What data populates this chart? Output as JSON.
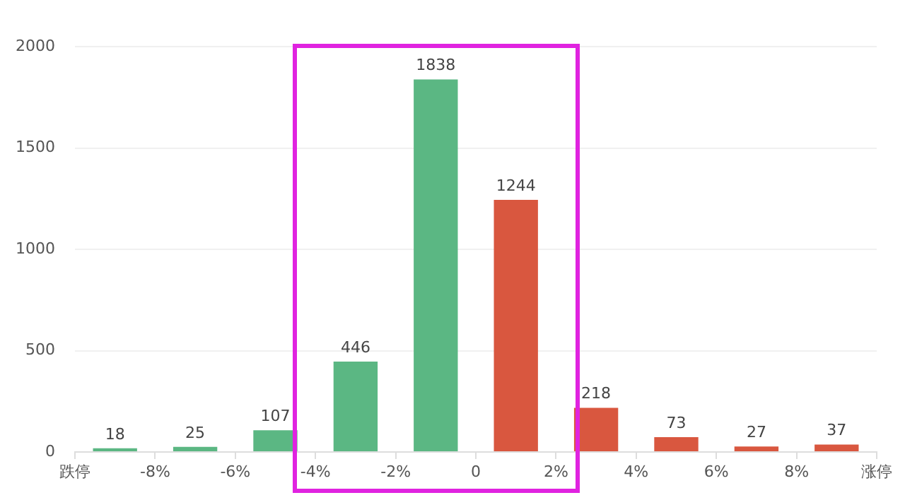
{
  "chart_data": {
    "type": "histogram",
    "bins": [
      -10,
      -8,
      -6,
      -4,
      -2,
      0,
      2,
      4,
      6,
      8,
      10
    ],
    "values": [
      18,
      25,
      107,
      446,
      1838,
      1244,
      218,
      73,
      27,
      37
    ],
    "colors": [
      "#5bb783",
      "#5bb783",
      "#5bb783",
      "#5bb783",
      "#5bb783",
      "#d9573f",
      "#d9573f",
      "#d9573f",
      "#d9573f",
      "#d9573f"
    ],
    "xlim": [
      -10,
      10
    ],
    "xticks": [
      {
        "value": -10,
        "label": "跌停"
      },
      {
        "value": -8,
        "label": "-8%"
      },
      {
        "value": -6,
        "label": "-6%"
      },
      {
        "value": -4,
        "label": "-4%"
      },
      {
        "value": -2,
        "label": "-2%"
      },
      {
        "value": 0,
        "label": "0"
      },
      {
        "value": 2,
        "label": "2%"
      },
      {
        "value": 4,
        "label": "4%"
      },
      {
        "value": 6,
        "label": "6%"
      },
      {
        "value": 8,
        "label": "8%"
      },
      {
        "value": 10,
        "label": "涨停"
      }
    ],
    "ylim": [
      0,
      2000
    ],
    "yticks": [
      0,
      500,
      1000,
      1500,
      2000
    ],
    "grid": "y",
    "data_labels": true
  }
}
